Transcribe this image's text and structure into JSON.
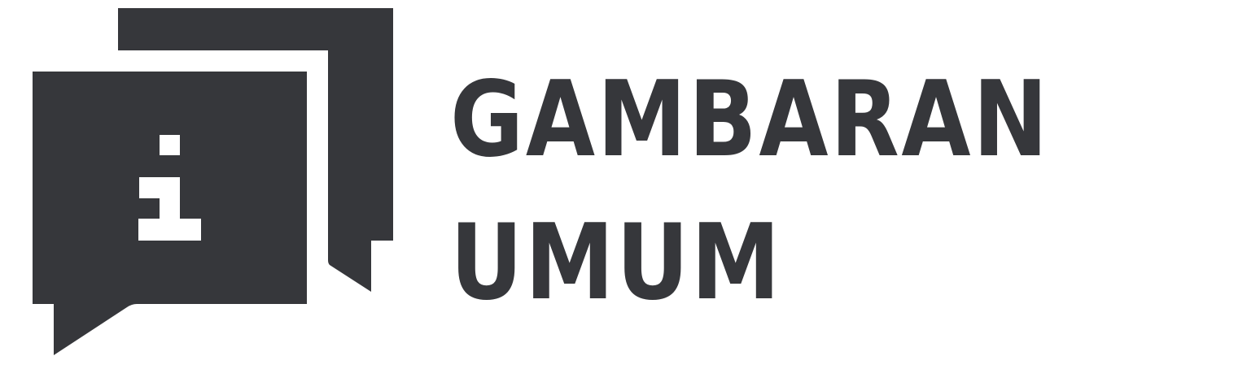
{
  "colors": {
    "ink": "#36373b",
    "background": "#ffffff",
    "icon_glyph": "#ffffff"
  },
  "icon": {
    "name": "info-chat-bubbles-icon"
  },
  "heading": {
    "line1": "GAMBARAN",
    "line2": "UMUM"
  }
}
